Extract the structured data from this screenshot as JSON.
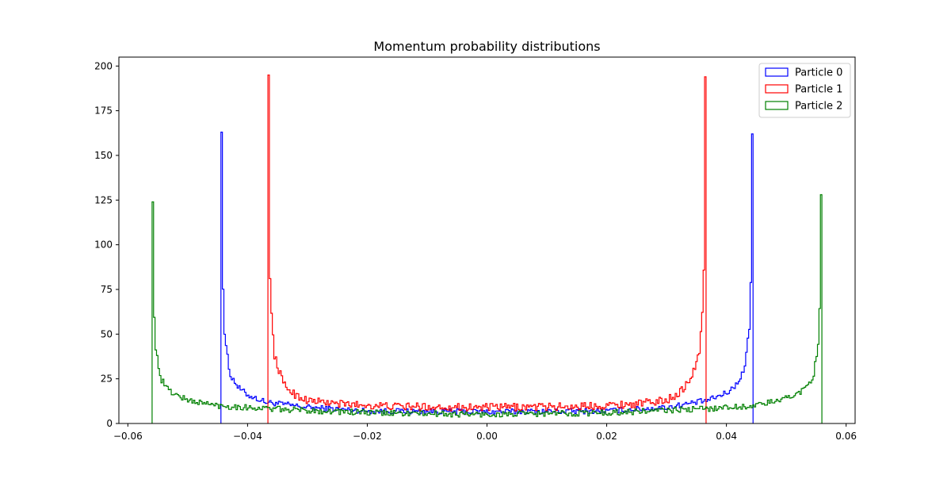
{
  "chart_data": {
    "type": "histogram",
    "title": "Momentum probability distributions",
    "xlabel": "",
    "ylabel": "",
    "xlim": [
      -0.0615,
      0.0615
    ],
    "ylim": [
      0,
      205
    ],
    "x_ticks": [
      -0.06,
      -0.04,
      -0.02,
      0.0,
      0.02,
      0.04,
      0.06
    ],
    "x_tick_labels": [
      "−0.06",
      "−0.04",
      "−0.02",
      "0.00",
      "0.02",
      "0.04",
      "0.06"
    ],
    "y_ticks": [
      0,
      25,
      50,
      75,
      100,
      125,
      150,
      175,
      200
    ],
    "y_tick_labels": [
      "0",
      "25",
      "50",
      "75",
      "100",
      "125",
      "150",
      "175",
      "200"
    ],
    "grid": false,
    "legend_position": "top-right",
    "histtype": "step",
    "bins": 500,
    "series": [
      {
        "name": "Particle 0",
        "color": "#0000ff",
        "range": [
          -0.04445,
          0.04445
        ],
        "edge_peaks": [
          163,
          162
        ],
        "baseline": 6.5,
        "noise": 1.6,
        "samples": [
          [
            -0.0444,
            163
          ],
          [
            -0.044,
            55
          ],
          [
            -0.043,
            28
          ],
          [
            -0.0415,
            20
          ],
          [
            -0.04,
            16
          ],
          [
            -0.037,
            12
          ],
          [
            -0.03,
            9
          ],
          [
            -0.02,
            7
          ],
          [
            0.0,
            6.5
          ],
          [
            0.02,
            7
          ],
          [
            0.03,
            9
          ],
          [
            0.037,
            13
          ],
          [
            0.04,
            17
          ],
          [
            0.0415,
            21
          ],
          [
            0.043,
            30
          ],
          [
            0.044,
            58
          ],
          [
            0.0444,
            162
          ]
        ]
      },
      {
        "name": "Particle 1",
        "color": "#ff0000",
        "range": [
          -0.0366,
          0.0366
        ],
        "edge_peaks": [
          195,
          194
        ],
        "baseline": 9,
        "noise": 2.2,
        "samples": [
          [
            -0.0365,
            195
          ],
          [
            -0.0362,
            70
          ],
          [
            -0.0355,
            38
          ],
          [
            -0.034,
            22
          ],
          [
            -0.032,
            16
          ],
          [
            -0.03,
            13
          ],
          [
            -0.025,
            11
          ],
          [
            -0.015,
            9.5
          ],
          [
            0.0,
            9
          ],
          [
            0.015,
            9.5
          ],
          [
            0.025,
            11
          ],
          [
            0.03,
            13
          ],
          [
            0.032,
            17
          ],
          [
            0.034,
            24
          ],
          [
            0.0355,
            40
          ],
          [
            0.0362,
            72
          ],
          [
            0.0365,
            194
          ]
        ]
      },
      {
        "name": "Particle 2",
        "color": "#008000",
        "range": [
          -0.05595,
          0.05595
        ],
        "edge_peaks": [
          124,
          128
        ],
        "baseline": 5,
        "noise": 1.7,
        "samples": [
          [
            -0.0559,
            124
          ],
          [
            -0.0555,
            45
          ],
          [
            -0.0545,
            25
          ],
          [
            -0.053,
            18
          ],
          [
            -0.05,
            13
          ],
          [
            -0.045,
            10
          ],
          [
            -0.035,
            8
          ],
          [
            -0.02,
            6
          ],
          [
            0.0,
            5
          ],
          [
            0.02,
            6
          ],
          [
            0.035,
            8
          ],
          [
            0.045,
            10
          ],
          [
            0.05,
            14
          ],
          [
            0.053,
            19
          ],
          [
            0.0545,
            26
          ],
          [
            0.0555,
            48
          ],
          [
            0.0559,
            128
          ]
        ]
      }
    ]
  }
}
